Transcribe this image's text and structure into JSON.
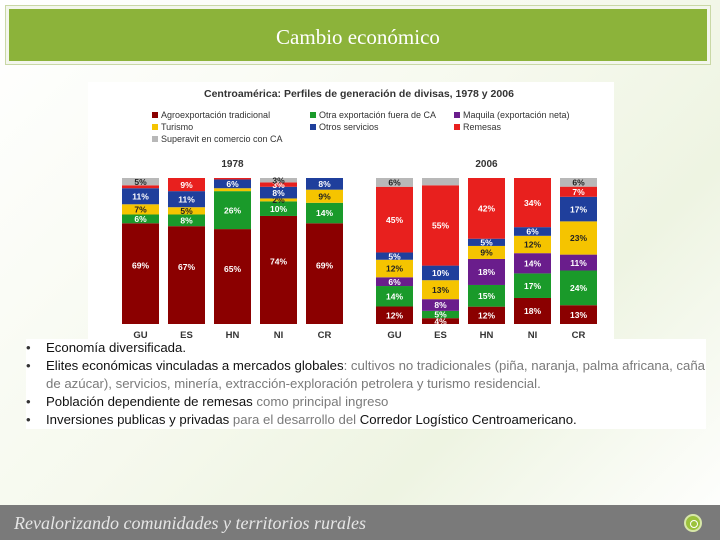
{
  "slide": {
    "title": "Cambio económico",
    "footer_text": "Revalorizando comunidades y territorios rurales"
  },
  "bullets": [
    {
      "parts": [
        {
          "t": "Economía diversificada.",
          "em": true
        }
      ]
    },
    {
      "parts": [
        {
          "t": "Elites económicas  vinculadas a mercados globales",
          "em": true
        },
        {
          "t": ": cultivos no tradicionales (piña, naranja, palma africana, caña de azúcar),  servicios, minería, extracción-exploración petrolera y turismo residencial.",
          "em": false
        }
      ]
    },
    {
      "parts": [
        {
          "t": "Población dependiente de ",
          "em": true
        },
        {
          "t": "remesas",
          "em": true,
          "dark": true
        },
        {
          "t": " como principal ingreso",
          "em": false
        }
      ]
    },
    {
      "parts": [
        {
          "t": "Inversiones publicas y privadas ",
          "em": true
        },
        {
          "t": "para el desarrollo del ",
          "em": false
        },
        {
          "t": "Corredor Logístico Centroamericano.",
          "em": true
        }
      ]
    }
  ],
  "chart_data": {
    "type": "bar",
    "stacked": true,
    "title": "Centroamérica: Perfiles de generación de divisas, 1978 y 2006",
    "legend": [
      {
        "name": "Agroexportación tradicional",
        "color": "#8b0000"
      },
      {
        "name": "Otra exportación fuera de CA",
        "color": "#1a9a2a"
      },
      {
        "name": "Maquila (exportación neta)",
        "color": "#6a1d8c"
      },
      {
        "name": "Turismo",
        "color": "#f5c400"
      },
      {
        "name": "Otros servicios",
        "color": "#1f3f9c"
      },
      {
        "name": "Remesas",
        "color": "#e8201e"
      },
      {
        "name": "Superavit en comercio con CA",
        "color": "#b8b8b8"
      }
    ],
    "groups": [
      {
        "year": "1978",
        "bars": [
          {
            "category": "GU",
            "segments": [
              {
                "series": "Agroexportación tradicional",
                "value": 69,
                "label": "69%"
              },
              {
                "series": "Otra exportación fuera de CA",
                "value": 6,
                "label": "6%"
              },
              {
                "series": "Turismo",
                "value": 7,
                "label": "7%"
              },
              {
                "series": "Otros servicios",
                "value": 11,
                "label": "11%"
              },
              {
                "series": "Remesas",
                "value": 2,
                "label": ""
              },
              {
                "series": "Superavit en comercio con CA",
                "value": 5,
                "label": "5%"
              }
            ]
          },
          {
            "category": "ES",
            "segments": [
              {
                "series": "Agroexportación tradicional",
                "value": 67,
                "label": "67%"
              },
              {
                "series": "Otra exportación fuera de CA",
                "value": 8,
                "label": "8%"
              },
              {
                "series": "Turismo",
                "value": 5,
                "label": "5%"
              },
              {
                "series": "Otros servicios",
                "value": 11,
                "label": "11%"
              },
              {
                "series": "Remesas",
                "value": 9,
                "label": "9%"
              }
            ]
          },
          {
            "category": "HN",
            "segments": [
              {
                "series": "Agroexportación tradicional",
                "value": 65,
                "label": "65%"
              },
              {
                "series": "Otra exportación fuera de CA",
                "value": 26,
                "label": "26%"
              },
              {
                "series": "Turismo",
                "value": 2,
                "label": ""
              },
              {
                "series": "Otros servicios",
                "value": 6,
                "label": "6%"
              },
              {
                "series": "Remesas",
                "value": 1,
                "label": ""
              }
            ]
          },
          {
            "category": "NI",
            "segments": [
              {
                "series": "Agroexportación tradicional",
                "value": 74,
                "label": "74%"
              },
              {
                "series": "Otra exportación fuera de CA",
                "value": 10,
                "label": "10%"
              },
              {
                "series": "Turismo",
                "value": 2,
                "label": "2%"
              },
              {
                "series": "Otros servicios",
                "value": 8,
                "label": "8%"
              },
              {
                "series": "Remesas",
                "value": 3,
                "label": "3%"
              },
              {
                "series": "Superavit en comercio con CA",
                "value": 3,
                "label": "3%"
              }
            ]
          },
          {
            "category": "CR",
            "segments": [
              {
                "series": "Agroexportación tradicional",
                "value": 69,
                "label": "69%"
              },
              {
                "series": "Otra exportación fuera de CA",
                "value": 14,
                "label": "14%"
              },
              {
                "series": "Turismo",
                "value": 9,
                "label": "9%"
              },
              {
                "series": "Otros servicios",
                "value": 8,
                "label": "8%"
              }
            ]
          }
        ]
      },
      {
        "year": "2006",
        "bars": [
          {
            "category": "GU",
            "segments": [
              {
                "series": "Agroexportación tradicional",
                "value": 12,
                "label": "12%"
              },
              {
                "series": "Otra exportación fuera de CA",
                "value": 14,
                "label": "14%"
              },
              {
                "series": "Maquila (exportación neta)",
                "value": 6,
                "label": "6%"
              },
              {
                "series": "Turismo",
                "value": 12,
                "label": "12%"
              },
              {
                "series": "Otros servicios",
                "value": 5,
                "label": "5%"
              },
              {
                "series": "Remesas",
                "value": 45,
                "label": "45%"
              },
              {
                "series": "Superavit en comercio con CA",
                "value": 6,
                "label": "6%"
              }
            ]
          },
          {
            "category": "ES",
            "segments": [
              {
                "series": "Agroexportación tradicional",
                "value": 4,
                "label": "4%"
              },
              {
                "series": "Otra exportación fuera de CA",
                "value": 5,
                "label": "5%"
              },
              {
                "series": "Maquila (exportación neta)",
                "value": 8,
                "label": "8%"
              },
              {
                "series": "Turismo",
                "value": 13,
                "label": "13%"
              },
              {
                "series": "Otros servicios",
                "value": 10,
                "label": "10%"
              },
              {
                "series": "Remesas",
                "value": 55,
                "label": "55%"
              },
              {
                "series": "Superavit en comercio con CA",
                "value": 5,
                "label": ""
              }
            ]
          },
          {
            "category": "HN",
            "segments": [
              {
                "series": "Agroexportación tradicional",
                "value": 12,
                "label": "12%"
              },
              {
                "series": "Otra exportación fuera de CA",
                "value": 15,
                "label": "15%"
              },
              {
                "series": "Maquila (exportación neta)",
                "value": 18,
                "label": "18%"
              },
              {
                "series": "Turismo",
                "value": 9,
                "label": "9%"
              },
              {
                "series": "Otros servicios",
                "value": 5,
                "label": "5%"
              },
              {
                "series": "Remesas",
                "value": 42,
                "label": "42%"
              }
            ]
          },
          {
            "category": "NI",
            "segments": [
              {
                "series": "Agroexportación tradicional",
                "value": 18,
                "label": "18%"
              },
              {
                "series": "Otra exportación fuera de CA",
                "value": 17,
                "label": "17%"
              },
              {
                "series": "Maquila (exportación neta)",
                "value": 14,
                "label": "14%"
              },
              {
                "series": "Turismo",
                "value": 12,
                "label": "12%"
              },
              {
                "series": "Otros servicios",
                "value": 6,
                "label": "6%"
              },
              {
                "series": "Remesas",
                "value": 34,
                "label": "34%"
              }
            ]
          },
          {
            "category": "CR",
            "segments": [
              {
                "series": "Agroexportación tradicional",
                "value": 13,
                "label": "13%"
              },
              {
                "series": "Otra exportación fuera de CA",
                "value": 24,
                "label": "24%"
              },
              {
                "series": "Maquila (exportación neta)",
                "value": 11,
                "label": "11%"
              },
              {
                "series": "Turismo",
                "value": 23,
                "label": "23%"
              },
              {
                "series": "Otros servicios",
                "value": 17,
                "label": "17%"
              },
              {
                "series": "Remesas",
                "value": 7,
                "label": "7%"
              },
              {
                "series": "Superavit en comercio con CA",
                "value": 6,
                "label": "6%"
              }
            ]
          }
        ]
      }
    ],
    "ylim": [
      0,
      100
    ],
    "xlabel": "",
    "ylabel": ""
  }
}
